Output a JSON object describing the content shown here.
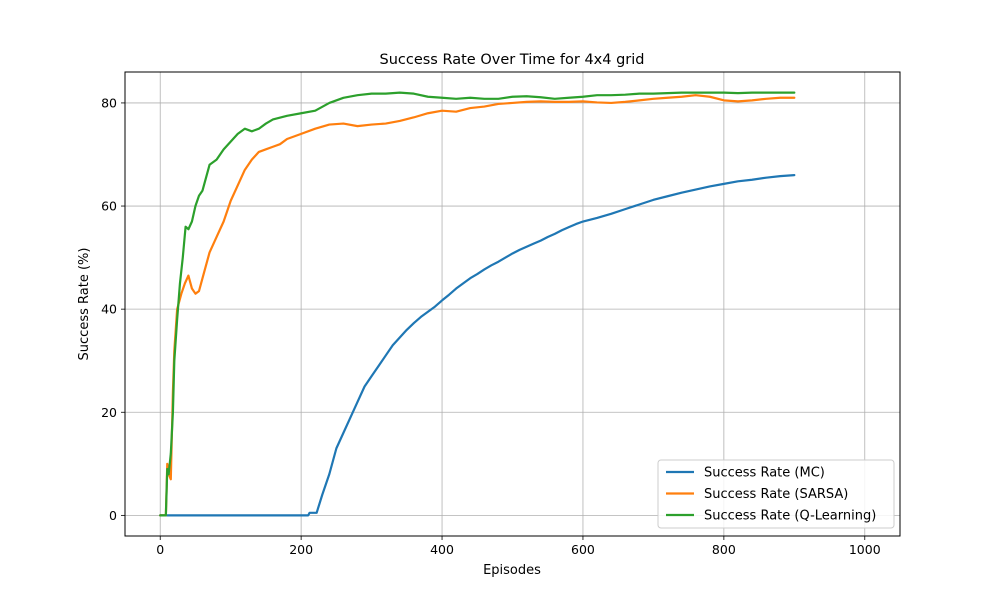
{
  "chart_data": {
    "type": "line",
    "title": "Success Rate Over Time for 4x4 grid",
    "xlabel": "Episodes",
    "ylabel": "Success Rate (%)",
    "xlim": [
      -50,
      1050
    ],
    "ylim": [
      -4,
      86
    ],
    "xticks": [
      0,
      200,
      400,
      600,
      800,
      1000
    ],
    "yticks": [
      0,
      20,
      40,
      60,
      80
    ],
    "grid": true,
    "legend_position": "lower-right",
    "series": [
      {
        "name": "Success Rate (MC)",
        "color": "#1f77b4",
        "points": [
          [
            0,
            0
          ],
          [
            100,
            0
          ],
          [
            210,
            0
          ],
          [
            212,
            0.5
          ],
          [
            222,
            0.5
          ],
          [
            230,
            4
          ],
          [
            240,
            8
          ],
          [
            250,
            13
          ],
          [
            260,
            16
          ],
          [
            270,
            19
          ],
          [
            280,
            22
          ],
          [
            290,
            25
          ],
          [
            300,
            27
          ],
          [
            310,
            29
          ],
          [
            320,
            31
          ],
          [
            330,
            33
          ],
          [
            340,
            34.5
          ],
          [
            350,
            36
          ],
          [
            360,
            37.3
          ],
          [
            370,
            38.5
          ],
          [
            380,
            39.5
          ],
          [
            390,
            40.5
          ],
          [
            400,
            41.7
          ],
          [
            410,
            42.8
          ],
          [
            420,
            44
          ],
          [
            430,
            45
          ],
          [
            440,
            46
          ],
          [
            450,
            46.8
          ],
          [
            460,
            47.7
          ],
          [
            470,
            48.5
          ],
          [
            480,
            49.2
          ],
          [
            490,
            50
          ],
          [
            500,
            50.8
          ],
          [
            510,
            51.5
          ],
          [
            520,
            52.1
          ],
          [
            530,
            52.7
          ],
          [
            540,
            53.3
          ],
          [
            550,
            54
          ],
          [
            560,
            54.6
          ],
          [
            570,
            55.3
          ],
          [
            580,
            55.9
          ],
          [
            590,
            56.5
          ],
          [
            600,
            57
          ],
          [
            620,
            57.7
          ],
          [
            640,
            58.5
          ],
          [
            660,
            59.4
          ],
          [
            680,
            60.3
          ],
          [
            700,
            61.2
          ],
          [
            720,
            61.9
          ],
          [
            740,
            62.6
          ],
          [
            760,
            63.2
          ],
          [
            780,
            63.8
          ],
          [
            800,
            64.3
          ],
          [
            820,
            64.8
          ],
          [
            840,
            65.1
          ],
          [
            860,
            65.5
          ],
          [
            880,
            65.8
          ],
          [
            900,
            66
          ]
        ]
      },
      {
        "name": "Success Rate (SARSA)",
        "color": "#ff7f0e",
        "points": [
          [
            0,
            0
          ],
          [
            8,
            0
          ],
          [
            10,
            10
          ],
          [
            12,
            8
          ],
          [
            15,
            7
          ],
          [
            18,
            24
          ],
          [
            20,
            32
          ],
          [
            24,
            40
          ],
          [
            30,
            43
          ],
          [
            35,
            45
          ],
          [
            40,
            46.5
          ],
          [
            45,
            44
          ],
          [
            50,
            43
          ],
          [
            55,
            43.5
          ],
          [
            60,
            46
          ],
          [
            70,
            51
          ],
          [
            80,
            54
          ],
          [
            90,
            57
          ],
          [
            100,
            61
          ],
          [
            110,
            64
          ],
          [
            120,
            67
          ],
          [
            130,
            69
          ],
          [
            140,
            70.5
          ],
          [
            150,
            71
          ],
          [
            160,
            71.5
          ],
          [
            170,
            72
          ],
          [
            180,
            73
          ],
          [
            200,
            74
          ],
          [
            220,
            75
          ],
          [
            240,
            75.8
          ],
          [
            260,
            76
          ],
          [
            280,
            75.5
          ],
          [
            300,
            75.8
          ],
          [
            320,
            76
          ],
          [
            340,
            76.5
          ],
          [
            360,
            77.2
          ],
          [
            380,
            78
          ],
          [
            400,
            78.5
          ],
          [
            420,
            78.3
          ],
          [
            440,
            79
          ],
          [
            460,
            79.3
          ],
          [
            480,
            79.8
          ],
          [
            500,
            80
          ],
          [
            520,
            80.2
          ],
          [
            540,
            80.3
          ],
          [
            560,
            80.2
          ],
          [
            580,
            80.2
          ],
          [
            600,
            80.3
          ],
          [
            620,
            80.1
          ],
          [
            640,
            80
          ],
          [
            660,
            80.2
          ],
          [
            680,
            80.5
          ],
          [
            700,
            80.8
          ],
          [
            720,
            81
          ],
          [
            740,
            81.2
          ],
          [
            760,
            81.5
          ],
          [
            780,
            81.2
          ],
          [
            800,
            80.5
          ],
          [
            820,
            80.3
          ],
          [
            840,
            80.5
          ],
          [
            860,
            80.8
          ],
          [
            880,
            81
          ],
          [
            900,
            81
          ]
        ]
      },
      {
        "name": "Success Rate (Q-Learning)",
        "color": "#2ca02c",
        "points": [
          [
            0,
            0
          ],
          [
            8,
            0
          ],
          [
            10,
            9
          ],
          [
            12,
            8
          ],
          [
            15,
            12
          ],
          [
            18,
            20
          ],
          [
            20,
            30
          ],
          [
            24,
            38
          ],
          [
            28,
            45
          ],
          [
            32,
            50
          ],
          [
            36,
            56
          ],
          [
            40,
            55.5
          ],
          [
            45,
            57
          ],
          [
            50,
            60
          ],
          [
            55,
            62
          ],
          [
            60,
            63
          ],
          [
            70,
            68
          ],
          [
            80,
            69
          ],
          [
            90,
            71
          ],
          [
            100,
            72.5
          ],
          [
            110,
            74
          ],
          [
            120,
            75
          ],
          [
            130,
            74.5
          ],
          [
            140,
            75
          ],
          [
            150,
            76
          ],
          [
            160,
            76.8
          ],
          [
            180,
            77.5
          ],
          [
            200,
            78
          ],
          [
            220,
            78.5
          ],
          [
            240,
            80
          ],
          [
            260,
            81
          ],
          [
            280,
            81.5
          ],
          [
            300,
            81.8
          ],
          [
            320,
            81.8
          ],
          [
            340,
            82
          ],
          [
            360,
            81.8
          ],
          [
            380,
            81.2
          ],
          [
            400,
            81
          ],
          [
            420,
            80.8
          ],
          [
            440,
            81
          ],
          [
            460,
            80.8
          ],
          [
            480,
            80.8
          ],
          [
            500,
            81.2
          ],
          [
            520,
            81.3
          ],
          [
            540,
            81.1
          ],
          [
            560,
            80.8
          ],
          [
            580,
            81
          ],
          [
            600,
            81.2
          ],
          [
            620,
            81.5
          ],
          [
            640,
            81.5
          ],
          [
            660,
            81.6
          ],
          [
            680,
            81.8
          ],
          [
            700,
            81.8
          ],
          [
            720,
            81.9
          ],
          [
            740,
            82
          ],
          [
            760,
            82
          ],
          [
            780,
            82
          ],
          [
            800,
            82
          ],
          [
            820,
            81.9
          ],
          [
            840,
            82
          ],
          [
            860,
            82
          ],
          [
            880,
            82
          ],
          [
            900,
            82
          ]
        ]
      }
    ]
  }
}
